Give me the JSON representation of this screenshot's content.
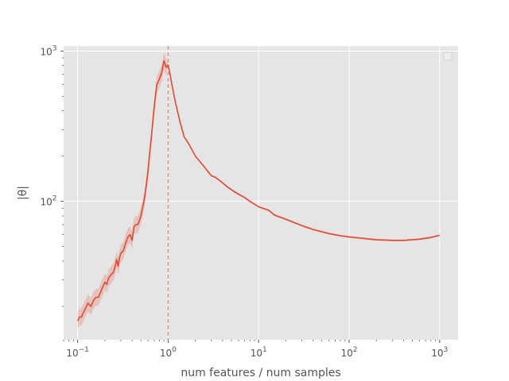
{
  "chart_data": {
    "type": "line",
    "title": "",
    "xlabel": "num features / num samples",
    "ylabel": "|θ|",
    "xscale": "log",
    "yscale": "log",
    "xlim": [
      0.07,
      1600
    ],
    "ylim": [
      12,
      1080
    ],
    "grid": true,
    "legend": "top-right (empty)",
    "colors": {
      "line": "#e24a33",
      "band": "#e24a33",
      "vline": "#e24a33",
      "panel": "#e5e5e5",
      "grid": "#ffffff",
      "text": "#555555"
    },
    "x_ticks": [
      {
        "value": 0.1,
        "base": "10",
        "exp": "−1"
      },
      {
        "value": 1,
        "base": "10",
        "exp": "0"
      },
      {
        "value": 10,
        "base": "10",
        "exp": "1"
      },
      {
        "value": 100,
        "base": "10",
        "exp": "2"
      },
      {
        "value": 1000,
        "base": "10",
        "exp": "3"
      }
    ],
    "y_ticks": [
      {
        "value": 100,
        "base": "10",
        "exp": "2"
      },
      {
        "value": 1000,
        "base": "10",
        "exp": "3"
      }
    ],
    "vline_x": 1,
    "series": [
      {
        "x": [
          0.1,
          0.105,
          0.11,
          0.12,
          0.13,
          0.14,
          0.15,
          0.16,
          0.17,
          0.18,
          0.19,
          0.2,
          0.21,
          0.22,
          0.23,
          0.24,
          0.25,
          0.26,
          0.27,
          0.28,
          0.29,
          0.3,
          0.32,
          0.34,
          0.36,
          0.38,
          0.4,
          0.42,
          0.44,
          0.46,
          0.48,
          0.5,
          0.52,
          0.54,
          0.56,
          0.58,
          0.6,
          0.62,
          0.65,
          0.7,
          0.75,
          0.8,
          0.85,
          0.9,
          0.95,
          1.0,
          1.05,
          1.1,
          1.2,
          1.35,
          1.5,
          1.7,
          2.0,
          2.5,
          3.0,
          3.3,
          3.8,
          4.5,
          5.5,
          7,
          8,
          10,
          13,
          15,
          20,
          30,
          40,
          60,
          80,
          100,
          150,
          200,
          300,
          400,
          600,
          800,
          1000
        ],
        "y": [
          16,
          17,
          17,
          19,
          21,
          20,
          22,
          23,
          23,
          25,
          27,
          29,
          28,
          31,
          32,
          33,
          34,
          37,
          41,
          37,
          42,
          45,
          47,
          53,
          58,
          60,
          55,
          68,
          70,
          70,
          74,
          80,
          90,
          100,
          115,
          135,
          160,
          200,
          260,
          420,
          600,
          650,
          720,
          860,
          780,
          810,
          700,
          600,
          460,
          340,
          270,
          240,
          200,
          170,
          148,
          145,
          136,
          125,
          115,
          106,
          100,
          92,
          87,
          81,
          76,
          69,
          65,
          61,
          59,
          58,
          56.5,
          55.5,
          55,
          55,
          56,
          57.5,
          59.5
        ]
      }
    ]
  }
}
